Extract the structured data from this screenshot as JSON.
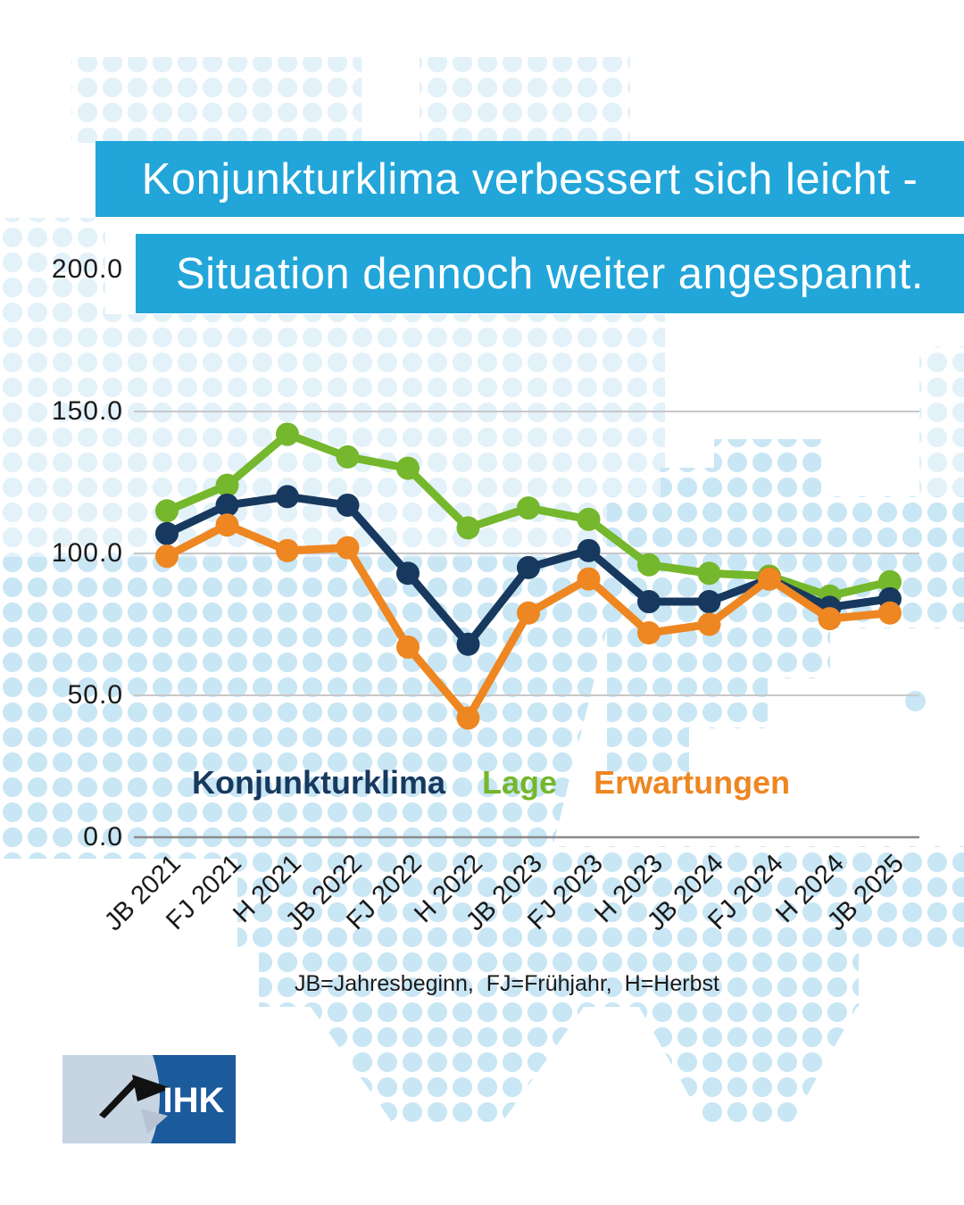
{
  "title": {
    "line1": "Konjunkturklima verbessert sich leicht -",
    "line2": "Situation dennoch weiter angespannt."
  },
  "footnote": "JB=Jahresbeginn,  FJ=Frühjahr,  H=Herbst",
  "logo": {
    "text": "IHK"
  },
  "colors": {
    "title_bar": "#22a6d9",
    "konjunkturklima": "#17395f",
    "lage": "#75b72d",
    "erwartungen": "#ee8621",
    "grid_line": "#c8c8c8",
    "axis_line": "#8a8a8a",
    "axis_text": "#1a1a1a",
    "dot_light": "#e3f1f9",
    "dot_medium": "#c9e6f4"
  },
  "chart_data": {
    "type": "line",
    "categories": [
      "JB 2021",
      "FJ 2021",
      "H 2021",
      "JB 2022",
      "FJ 2022",
      "H 2022",
      "JB 2023",
      "FJ 2023",
      "H 2023",
      "JB 2024",
      "FJ 2024",
      "H 2024",
      "JB 2025"
    ],
    "series": [
      {
        "name": "Konjunkturklima",
        "color": "#17395f",
        "z": 2,
        "values": [
          107,
          117,
          120,
          117,
          93,
          68,
          95,
          101,
          83,
          83,
          91,
          81,
          84
        ]
      },
      {
        "name": "Lage",
        "color": "#75b72d",
        "z": 1,
        "values": [
          115,
          124,
          142,
          134,
          130,
          109,
          116,
          112,
          96,
          93,
          92,
          85,
          90
        ]
      },
      {
        "name": "Erwartungen",
        "color": "#ee8621",
        "z": 3,
        "values": [
          99,
          110,
          101,
          102,
          67,
          42,
          79,
          91,
          72,
          75,
          91,
          77,
          79
        ]
      }
    ],
    "ylim": [
      0,
      200
    ],
    "yticks": [
      {
        "value": 0,
        "label": "0.0"
      },
      {
        "value": 50,
        "label": "50.0"
      },
      {
        "value": 100,
        "label": "100.0"
      },
      {
        "value": 150,
        "label": "150.0"
      },
      {
        "value": 200,
        "label": "200.0"
      }
    ],
    "grid": "horizontal",
    "legend_position": "bottom-inside",
    "x_axis_note": "JB=Jahresbeginn,  FJ=Frühjahr,  H=Herbst"
  }
}
